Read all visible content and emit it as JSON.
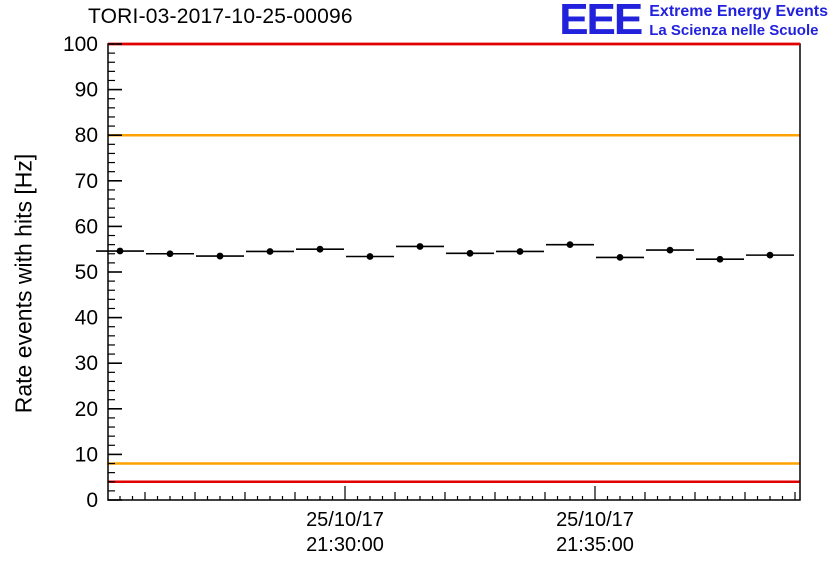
{
  "header": {
    "title": "TORI-03-2017-10-25-00096",
    "logo": {
      "eee": "EEE",
      "line1": "Extreme Energy Events",
      "line2": "La Scienza nelle Scuole",
      "color": "#2222dd"
    }
  },
  "chart_data": {
    "type": "scatter",
    "title": "TORI-03-2017-10-25-00096",
    "xlabel": "",
    "ylabel": "Rate events with hits [Hz]",
    "ylim": [
      0,
      100
    ],
    "y_ticks": [
      0,
      10,
      20,
      30,
      40,
      50,
      60,
      70,
      80,
      90,
      100
    ],
    "y_minor_step": 2,
    "grid": false,
    "legend": "none",
    "x_major_ticks": [
      "21:30:00",
      "21:35:00"
    ],
    "x_tick_labels": [
      {
        "line1": "25/10/17",
        "line2": "21:30:00"
      },
      {
        "line1": "25/10/17",
        "line2": "21:35:00"
      }
    ],
    "bin_width_seconds": 60,
    "marker_color": "#000000",
    "points": [
      {
        "t": "21:25:30",
        "y": 54.6
      },
      {
        "t": "21:26:30",
        "y": 54.0
      },
      {
        "t": "21:27:30",
        "y": 53.5
      },
      {
        "t": "21:28:30",
        "y": 54.5
      },
      {
        "t": "21:29:30",
        "y": 55.0
      },
      {
        "t": "21:30:30",
        "y": 53.4
      },
      {
        "t": "21:31:30",
        "y": 55.6
      },
      {
        "t": "21:32:30",
        "y": 54.1
      },
      {
        "t": "21:33:30",
        "y": 54.5
      },
      {
        "t": "21:34:30",
        "y": 56.0
      },
      {
        "t": "21:35:30",
        "y": 53.2
      },
      {
        "t": "21:36:30",
        "y": 54.8
      },
      {
        "t": "21:37:30",
        "y": 52.8
      },
      {
        "t": "21:38:30",
        "y": 53.7
      }
    ],
    "reference_lines": [
      {
        "y": 100,
        "color": "#e10000",
        "meaning": "upper alarm limit"
      },
      {
        "y": 80,
        "color": "#ffa200",
        "meaning": "upper warning limit"
      },
      {
        "y": 8,
        "color": "#ffa200",
        "meaning": "lower warning limit"
      },
      {
        "y": 4,
        "color": "#e10000",
        "meaning": "lower alarm limit"
      }
    ]
  }
}
